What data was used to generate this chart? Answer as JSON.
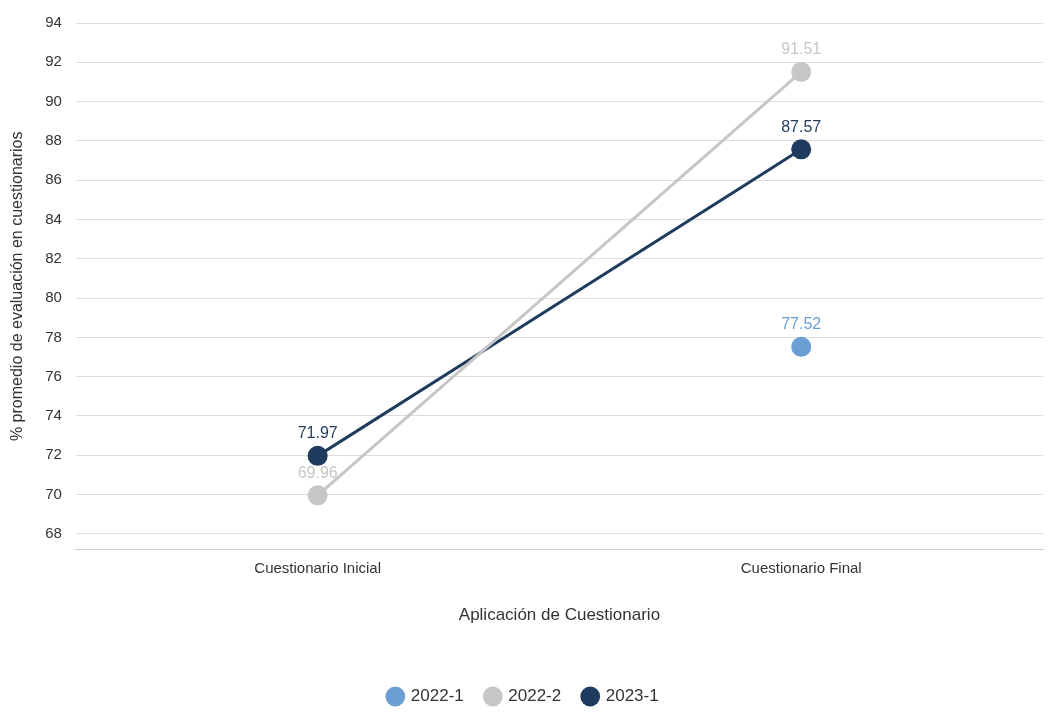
{
  "chart_data": {
    "type": "line",
    "xlabel": "Aplicación de Cuestionario",
    "ylabel": "% promedio de evaluación en cuestionarios",
    "categories": [
      "Cuestionario Inicial",
      "Cuestionario Final"
    ],
    "series": [
      {
        "name": "2022-1",
        "color": "#6b9fd3",
        "values": [
          null,
          77.52
        ]
      },
      {
        "name": "2022-2",
        "color": "#c6c6c6",
        "values": [
          69.96,
          91.51
        ]
      },
      {
        "name": "2023-1",
        "color": "#1f3b5e",
        "values": [
          71.97,
          87.57
        ]
      }
    ],
    "ylim": [
      67.2,
      94
    ],
    "yticks": [
      68,
      70,
      72,
      74,
      76,
      78,
      80,
      82,
      84,
      86,
      88,
      90,
      92,
      94
    ],
    "grid": "y",
    "legend": "bottom",
    "marker": "circle",
    "data_labels": true
  }
}
